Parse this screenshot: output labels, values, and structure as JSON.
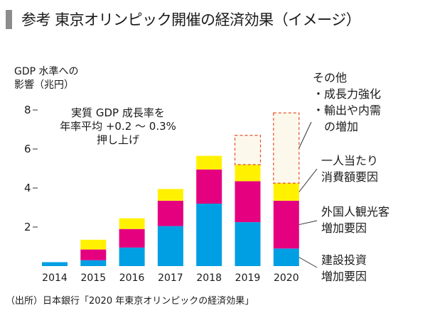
{
  "header": {
    "title": "参考 東京オリンピック開催の経済効果（イメージ）"
  },
  "ylabel_lines": [
    "GDP 水準への",
    "影響（兆円）"
  ],
  "note_lines": [
    "実質 GDP 成長率を",
    "年率平均 +0.2 ～ 0.3%",
    "押し上げ"
  ],
  "legend_labels": {
    "other": [
      "その他",
      "・成長力強化",
      "・輸出や内需",
      "　の増加"
    ],
    "consumption": [
      "一人当たり",
      "消費額要因"
    ],
    "tourism": [
      "外国人観光客",
      "増加要因"
    ],
    "construction": [
      "建設投資",
      "増加要因"
    ]
  },
  "source": "（出所）日本銀行「2020 年東京オリンピックの経済効果」",
  "colors": {
    "construction": "#009fe3",
    "tourism": "#e4007f",
    "consumption": "#fff100",
    "other_border": "#e6502a",
    "other_fill": "#fdf8ec"
  },
  "chart_data": {
    "type": "bar",
    "stacked": true,
    "categories": [
      "2014",
      "2015",
      "2016",
      "2017",
      "2018",
      "2019",
      "2020"
    ],
    "series": [
      {
        "key": "construction",
        "values": [
          0.2,
          0.3,
          0.95,
          2.05,
          3.2,
          2.25,
          0.9
        ]
      },
      {
        "key": "tourism",
        "values": [
          0.0,
          0.55,
          0.95,
          1.3,
          1.75,
          2.1,
          2.45
        ]
      },
      {
        "key": "consumption",
        "values": [
          0.0,
          0.5,
          0.55,
          0.6,
          0.7,
          0.85,
          0.9
        ]
      },
      {
        "key": "other",
        "values": [
          0.0,
          0.0,
          0.0,
          0.0,
          0.0,
          1.5,
          3.6
        ]
      }
    ],
    "ylim": [
      0,
      9
    ],
    "yticks": [
      2,
      4,
      6,
      8
    ],
    "grid": false,
    "legend": "right"
  }
}
